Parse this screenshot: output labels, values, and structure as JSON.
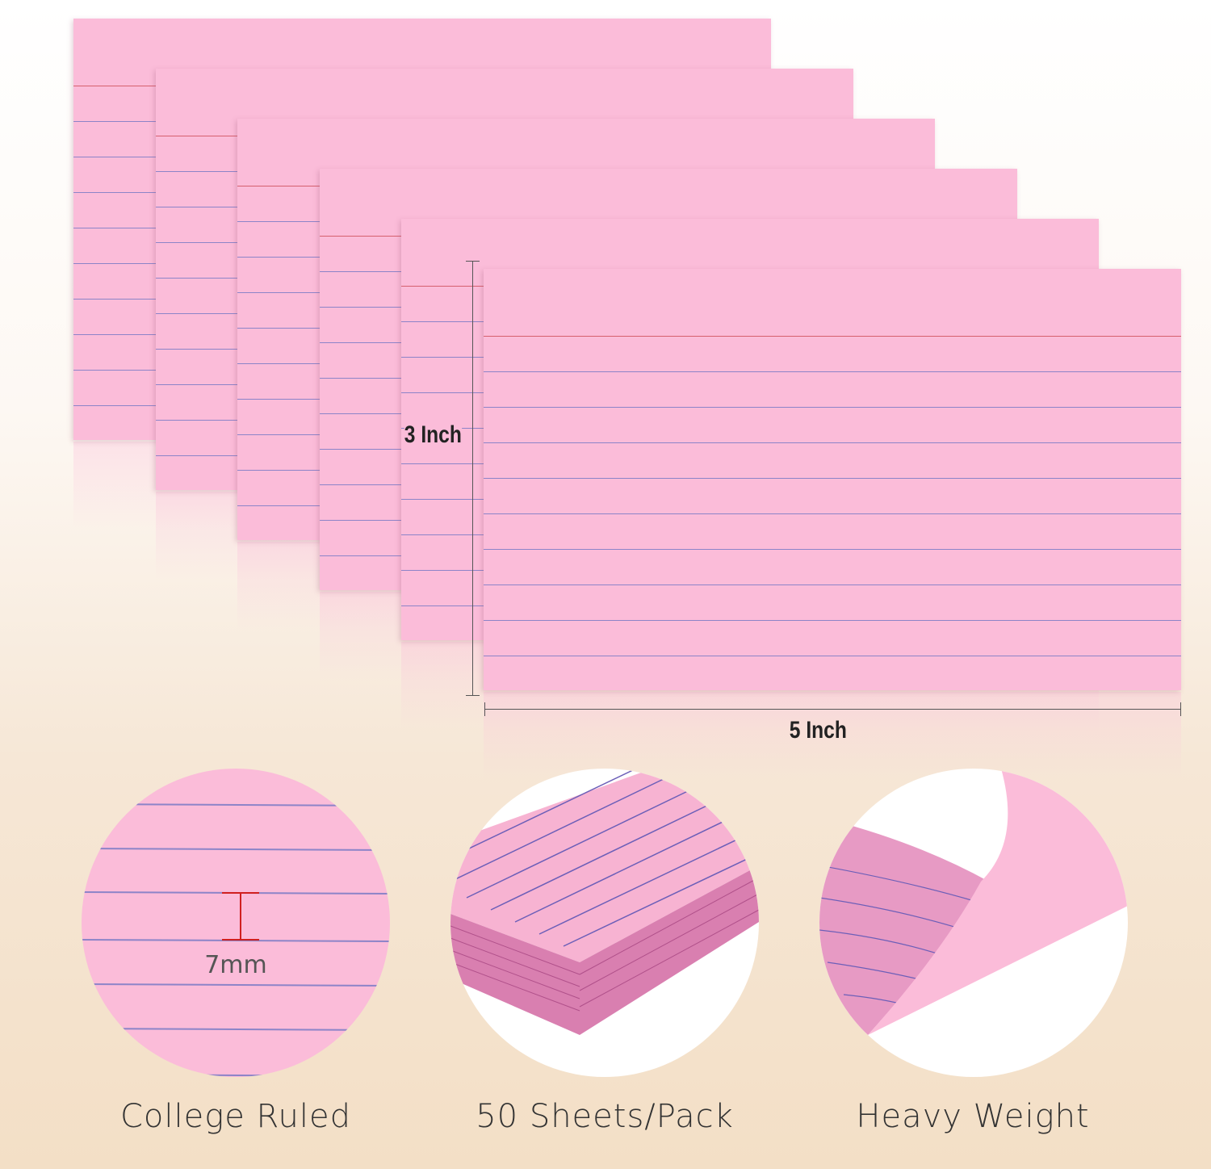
{
  "dimensions": {
    "height_label": "3 Inch",
    "width_label": "5 Inch"
  },
  "detail_circles": [
    {
      "caption": "College Ruled",
      "spacing_label": "7mm"
    },
    {
      "caption": "50 Sheets/Pack"
    },
    {
      "caption": "Heavy Weight"
    }
  ],
  "colors": {
    "card": "#fbbcd9",
    "rule_line": "#8c84c8",
    "margin_line": "#d5606e",
    "background": "#f3dfc6"
  }
}
